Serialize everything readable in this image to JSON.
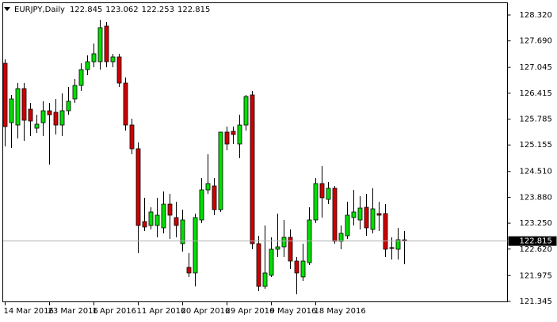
{
  "chart_data": {
    "type": "candlestick",
    "title": "EURJPY,Daily",
    "categories": [
      "14 Mar 2016",
      null,
      null,
      null,
      null,
      null,
      null,
      "23 Mar 2016",
      null,
      null,
      null,
      null,
      null,
      null,
      "1 Apr 2016",
      null,
      null,
      null,
      null,
      null,
      null,
      "11 Apr 2016",
      null,
      null,
      null,
      null,
      null,
      null,
      "20 Apr 2016",
      null,
      null,
      null,
      null,
      null,
      null,
      "29 Apr 2016",
      null,
      null,
      null,
      null,
      null,
      null,
      "9 May 2016",
      null,
      null,
      null,
      null,
      null,
      null,
      "18 May 2016",
      null,
      null,
      null,
      null,
      null,
      null,
      null,
      null,
      null,
      null,
      null,
      null,
      null,
      null
    ],
    "open": [
      127.144,
      125.699,
      125.641,
      126.528,
      126.027,
      125.564,
      125.699,
      125.988,
      125.95,
      125.641,
      125.988,
      126.277,
      126.605,
      126.99,
      127.183,
      127.183,
      128.05,
      127.183,
      127.299,
      126.663,
      125.641,
      125.063,
      123.29,
      123.194,
      123.194,
      123.136,
      123.714,
      123.387,
      122.751,
      122.173,
      122.038,
      123.329,
      124.061,
      124.157,
      123.58,
      125.468,
      125.487,
      125.179,
      125.641,
      126.374,
      122.751,
      121.71,
      121.98,
      122.616,
      122.674,
      122.905,
      122.327,
      121.942,
      122.288,
      123.329,
      124.215,
      123.83,
      124.1,
      122.809,
      122.944,
      123.387,
      123.329,
      123.637,
      123.098,
      123.484,
      123.484,
      122.655,
      122.616,
      122.845
    ],
    "high": [
      127.241,
      126.374,
      126.663,
      126.663,
      126.181,
      125.892,
      126.219,
      126.181,
      126.277,
      126.412,
      126.566,
      126.759,
      127.144,
      127.337,
      127.626,
      128.204,
      128.146,
      127.376,
      127.376,
      126.798,
      125.796,
      125.217,
      123.869,
      123.637,
      123.869,
      124.023,
      123.965,
      123.772,
      123.58,
      122.52,
      123.484,
      124.35,
      124.928,
      124.35,
      125.468,
      125.603,
      125.603,
      125.892,
      126.374,
      126.47,
      122.944,
      123.194,
      122.905,
      123.484,
      123.329,
      123.098,
      122.423,
      122.751,
      123.637,
      124.35,
      124.639,
      124.254,
      124.157,
      123.194,
      123.772,
      124.061,
      123.907,
      123.965,
      124.1,
      123.772,
      123.714,
      122.905,
      123.136,
      123.062
    ],
    "low": [
      125.121,
      125.082,
      125.314,
      125.256,
      125.372,
      125.449,
      125.372,
      124.678,
      125.41,
      125.372,
      125.892,
      126.181,
      126.47,
      126.855,
      127.048,
      126.99,
      127.048,
      127.048,
      126.566,
      125.506,
      124.928,
      122.52,
      123.059,
      123.098,
      122.905,
      123.002,
      122.867,
      122.905,
      122.558,
      121.942,
      121.71,
      123.252,
      123.965,
      123.445,
      123.522,
      125.025,
      125.179,
      124.832,
      125.506,
      122.616,
      121.594,
      121.652,
      121.942,
      122.423,
      122.423,
      122.134,
      121.518,
      121.845,
      122.231,
      123.252,
      123.387,
      123.714,
      122.751,
      122.616,
      122.867,
      123.194,
      123.098,
      122.944,
      123.002,
      123.059,
      122.423,
      122.366,
      122.366,
      122.253
    ],
    "close": [
      125.603,
      126.277,
      126.528,
      125.757,
      125.738,
      125.661,
      125.988,
      125.892,
      125.641,
      125.988,
      126.219,
      126.605,
      126.99,
      127.183,
      127.376,
      128.012,
      127.183,
      127.299,
      126.663,
      125.641,
      125.063,
      123.194,
      123.156,
      123.522,
      123.445,
      123.714,
      123.445,
      123.194,
      123.329,
      122.038,
      123.387,
      124.061,
      124.215,
      123.58,
      125.468,
      125.179,
      125.41,
      125.641,
      126.335,
      122.751,
      121.71,
      122.038,
      122.616,
      122.674,
      122.905,
      122.327,
      122.038,
      122.327,
      123.329,
      124.215,
      123.869,
      124.1,
      122.809,
      123.002,
      123.445,
      123.522,
      123.618,
      123.136,
      123.599,
      123.445,
      122.616,
      122.635,
      122.847,
      122.815
    ],
    "up_color": "#00e000",
    "down_color": "#d00000",
    "ylim": [
      121.344,
      128.609
    ],
    "yticks": [
      {
        "value": 128.32,
        "label": "128.320"
      },
      {
        "value": 127.69,
        "label": "127.690"
      },
      {
        "value": 127.045,
        "label": "127.045"
      },
      {
        "value": 126.415,
        "label": "126.415"
      },
      {
        "value": 125.785,
        "label": "125.785"
      },
      {
        "value": 125.155,
        "label": "125.155"
      },
      {
        "value": 124.51,
        "label": "124.510"
      },
      {
        "value": 123.88,
        "label": "123.880"
      },
      {
        "value": 123.25,
        "label": "123.250"
      },
      {
        "value": 122.62,
        "label": "122.620"
      },
      {
        "value": 121.975,
        "label": "121.975"
      },
      {
        "value": 121.345,
        "label": "121.345"
      }
    ]
  }
}
